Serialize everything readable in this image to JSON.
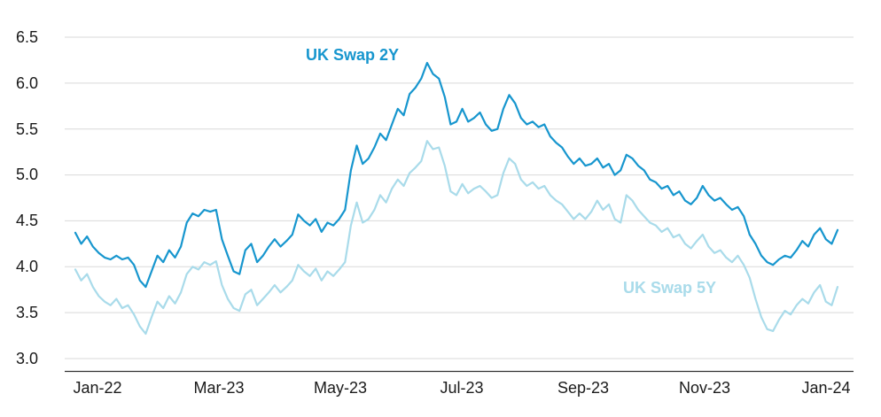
{
  "chart_data": {
    "type": "line",
    "title": "",
    "xlabel": "",
    "ylabel": "",
    "ylim": [
      3.0,
      6.5
    ],
    "grid": "horizontal",
    "legend": "inline-labels",
    "grid_color": "#D9D9D9",
    "axis_color": "#333333",
    "text_color": "#1A1A1A",
    "y_ticks": [
      3.0,
      3.5,
      4.0,
      4.5,
      5.0,
      5.5,
      6.0,
      6.5
    ],
    "y_tick_labels_desc": [
      "6.5",
      "6.0",
      "5.5",
      "5.0",
      "4.5",
      "4.0",
      "3.5",
      "3.0"
    ],
    "x_tick_labels": [
      "Jan-22",
      "Mar-23",
      "May-23",
      "Jul-23",
      "Sep-23",
      "Nov-23",
      "Jan-24"
    ],
    "series": [
      {
        "name": "UK Swap 2Y",
        "color": "#1796CE",
        "values": [
          4.37,
          4.25,
          4.33,
          4.22,
          4.15,
          4.1,
          4.08,
          4.12,
          4.08,
          4.1,
          4.02,
          3.85,
          3.78,
          3.95,
          4.12,
          4.05,
          4.18,
          4.1,
          4.22,
          4.48,
          4.58,
          4.55,
          4.62,
          4.6,
          4.62,
          4.3,
          4.12,
          3.95,
          3.92,
          4.18,
          4.25,
          4.05,
          4.12,
          4.22,
          4.3,
          4.22,
          4.28,
          4.35,
          4.57,
          4.5,
          4.45,
          4.52,
          4.38,
          4.48,
          4.45,
          4.52,
          4.62,
          5.05,
          5.32,
          5.12,
          5.18,
          5.3,
          5.45,
          5.38,
          5.55,
          5.72,
          5.65,
          5.88,
          5.95,
          6.05,
          6.22,
          6.1,
          6.05,
          5.85,
          5.55,
          5.58,
          5.72,
          5.58,
          5.62,
          5.68,
          5.55,
          5.48,
          5.5,
          5.72,
          5.87,
          5.78,
          5.62,
          5.55,
          5.58,
          5.52,
          5.55,
          5.42,
          5.35,
          5.3,
          5.2,
          5.12,
          5.18,
          5.1,
          5.12,
          5.18,
          5.08,
          5.12,
          5.0,
          5.05,
          5.22,
          5.18,
          5.1,
          5.05,
          4.95,
          4.92,
          4.85,
          4.88,
          4.78,
          4.82,
          4.72,
          4.68,
          4.75,
          4.88,
          4.78,
          4.72,
          4.75,
          4.68,
          4.62,
          4.65,
          4.55,
          4.35,
          4.25,
          4.12,
          4.05,
          4.02,
          4.08,
          4.12,
          4.1,
          4.18,
          4.28,
          4.22,
          4.35,
          4.42,
          4.3,
          4.25,
          4.4
        ]
      },
      {
        "name": "UK Swap 5Y",
        "color": "#A9DBEA",
        "values": [
          3.97,
          3.85,
          3.92,
          3.78,
          3.68,
          3.62,
          3.58,
          3.65,
          3.55,
          3.58,
          3.48,
          3.35,
          3.27,
          3.45,
          3.62,
          3.55,
          3.68,
          3.6,
          3.72,
          3.92,
          4.0,
          3.97,
          4.05,
          4.02,
          4.06,
          3.8,
          3.65,
          3.55,
          3.52,
          3.7,
          3.75,
          3.58,
          3.65,
          3.72,
          3.8,
          3.72,
          3.78,
          3.85,
          4.02,
          3.95,
          3.9,
          3.98,
          3.85,
          3.95,
          3.9,
          3.97,
          4.05,
          4.45,
          4.7,
          4.48,
          4.52,
          4.62,
          4.78,
          4.7,
          4.85,
          4.95,
          4.88,
          5.02,
          5.08,
          5.15,
          5.37,
          5.28,
          5.3,
          5.1,
          4.82,
          4.78,
          4.9,
          4.8,
          4.85,
          4.88,
          4.82,
          4.75,
          4.78,
          5.02,
          5.18,
          5.12,
          4.95,
          4.88,
          4.92,
          4.85,
          4.88,
          4.78,
          4.72,
          4.68,
          4.6,
          4.52,
          4.58,
          4.52,
          4.6,
          4.72,
          4.62,
          4.68,
          4.52,
          4.48,
          4.78,
          4.72,
          4.62,
          4.55,
          4.48,
          4.45,
          4.38,
          4.42,
          4.32,
          4.35,
          4.25,
          4.2,
          4.28,
          4.35,
          4.22,
          4.15,
          4.18,
          4.1,
          4.05,
          4.12,
          4.02,
          3.88,
          3.65,
          3.45,
          3.32,
          3.3,
          3.42,
          3.52,
          3.48,
          3.58,
          3.65,
          3.6,
          3.72,
          3.8,
          3.62,
          3.58,
          3.78
        ]
      }
    ]
  }
}
